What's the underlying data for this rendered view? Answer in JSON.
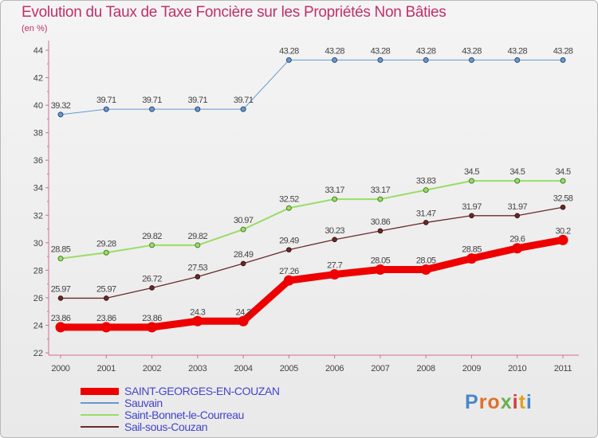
{
  "header": {
    "title": "Evolution du Taux de Taxe Foncière sur les Propriétés Non Bâties",
    "unit": "(en %)"
  },
  "logo": {
    "letters": [
      "P",
      "r",
      "o",
      "x",
      "i",
      "t",
      "i"
    ],
    "colors": [
      "#4a86c8",
      "#e0702a",
      "#e0702a",
      "#6ab04c",
      "#d23c3c",
      "#e0a020",
      "#4a86c8"
    ]
  },
  "chart_data": {
    "type": "line",
    "title": "Evolution du Taux de Taxe Foncière sur les Propriétés Non Bâties",
    "ylabel": "(en %)",
    "xlabel": "",
    "x": [
      "2000",
      "2001",
      "2002",
      "2003",
      "2004",
      "2005",
      "2006",
      "2007",
      "2008",
      "2009",
      "2010",
      "2011"
    ],
    "ylim": [
      22,
      44
    ],
    "yticks": [
      22,
      24,
      26,
      28,
      30,
      32,
      34,
      36,
      38,
      40,
      42,
      44
    ],
    "grid": false,
    "series": [
      {
        "name": "SAINT-GEORGES-EN-COUZAN",
        "color": "#ee0000",
        "values": [
          23.86,
          23.86,
          23.86,
          24.3,
          24.3,
          27.26,
          27.7,
          28.05,
          28.05,
          28.85,
          29.6,
          30.2
        ],
        "labels": [
          "23.86",
          "23.86",
          "23.86",
          "24.3",
          "24.3",
          "27.26",
          "27.7",
          "28.05",
          "28.05",
          "28.85",
          "29.6",
          "30.2"
        ]
      },
      {
        "name": "Sauvain",
        "color": "#6699cc",
        "values": [
          39.32,
          39.71,
          39.71,
          39.71,
          39.71,
          43.28,
          43.28,
          43.28,
          43.28,
          43.28,
          43.28,
          43.28
        ],
        "labels": [
          "39.32",
          "39.71",
          "39.71",
          "39.71",
          "39.71",
          "43.28",
          "43.28",
          "43.28",
          "43.28",
          "43.28",
          "43.28",
          "43.28"
        ]
      },
      {
        "name": "Saint-Bonnet-le-Courreau",
        "color": "#99dd66",
        "values": [
          28.85,
          29.28,
          29.82,
          29.82,
          30.97,
          32.52,
          33.17,
          33.17,
          33.83,
          34.5,
          34.5,
          34.5
        ],
        "labels": [
          "28.85",
          "29.28",
          "29.82",
          "29.82",
          "30.97",
          "32.52",
          "33.17",
          "33.17",
          "33.83",
          "34.5",
          "34.5",
          "34.5"
        ]
      },
      {
        "name": "Sail-sous-Couzan",
        "color": "#6b2a2a",
        "values": [
          25.97,
          25.97,
          26.72,
          27.53,
          28.49,
          29.49,
          30.23,
          30.86,
          31.47,
          31.97,
          31.97,
          32.58
        ],
        "labels": [
          "25.97",
          "25.97",
          "26.72",
          "27.53",
          "28.49",
          "29.49",
          "30.23",
          "30.86",
          "31.47",
          "31.97",
          "31.97",
          "32.58"
        ]
      }
    ]
  }
}
